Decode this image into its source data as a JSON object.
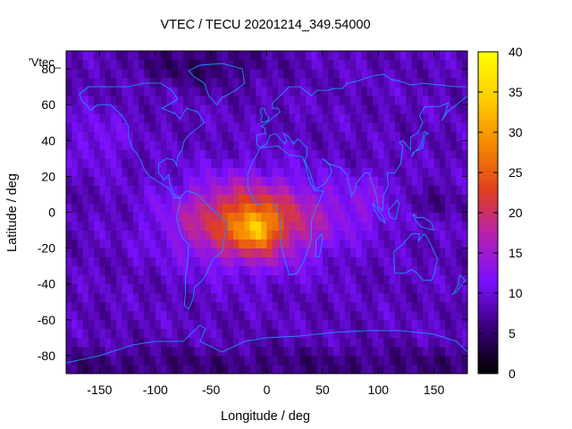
{
  "chart_data": {
    "type": "heatmap",
    "title": "VTEC / TECU 20201214_349.54000",
    "xlabel": "Longitude / deg",
    "ylabel": "Latitude / deg",
    "series_label": "'Vtec_",
    "xlim": [
      -180,
      180
    ],
    "ylim": [
      -90,
      90
    ],
    "xticks": [
      -150,
      -100,
      -50,
      0,
      50,
      100,
      150
    ],
    "xtick_labels": [
      "-150",
      "-100",
      "-50",
      "0",
      "50",
      "100",
      "150"
    ],
    "yticks": [
      -80,
      -60,
      -40,
      -20,
      0,
      20,
      40,
      60,
      80
    ],
    "ytick_labels": [
      "-80",
      "-60",
      "-40",
      "-20",
      "0",
      "20",
      "40",
      "60",
      "80"
    ],
    "colorbar": {
      "range": [
        0,
        40
      ],
      "ticks": [
        0,
        5,
        10,
        15,
        20,
        25,
        30,
        35,
        40
      ],
      "tick_labels": [
        "0",
        "5",
        "10",
        "15",
        "20",
        "25",
        "30",
        "35",
        "40"
      ],
      "palette": [
        "#000000",
        "#3a007a",
        "#7a10ff",
        "#b520b0",
        "#e0401e",
        "#f58a00",
        "#ffd000",
        "#ffff00"
      ]
    },
    "vtec_model": {
      "background": 8.5,
      "peak": {
        "lon": -10,
        "lat": -10,
        "value": 36
      },
      "main_anomaly": {
        "lon": -15,
        "lat": -5,
        "value": 26
      },
      "secondary": {
        "lon": 95,
        "lat": 5,
        "value": 13
      },
      "polar_minimum": 4.5
    },
    "grid_step_deg": 5
  },
  "coastline_color": "#1e90ff"
}
